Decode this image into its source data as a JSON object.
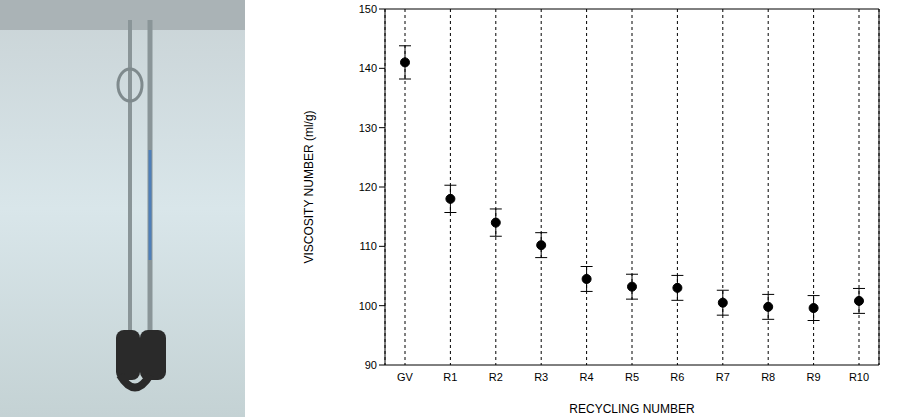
{
  "chart_data": {
    "type": "scatter",
    "xlabel": "RECYCLING NUMBER",
    "ylabel": "VISCOSITY NUMBER (ml/g)",
    "categories": [
      "GV",
      "R1",
      "R2",
      "R3",
      "R4",
      "R5",
      "R6",
      "R7",
      "R8",
      "R9",
      "R10"
    ],
    "values": [
      141,
      118,
      114,
      110.2,
      104.5,
      103.2,
      103,
      100.5,
      99.8,
      99.6,
      100.8
    ],
    "errors": [
      2.8,
      2.3,
      2.3,
      2.1,
      2.1,
      2.1,
      2.1,
      2.1,
      2.1,
      2.1,
      2.1
    ],
    "color": "#000000",
    "marker": "circle",
    "line_style": "none",
    "ylim": [
      90,
      150
    ],
    "yticks": [
      90,
      100,
      110,
      120,
      130,
      140,
      150
    ],
    "grid": true
  }
}
